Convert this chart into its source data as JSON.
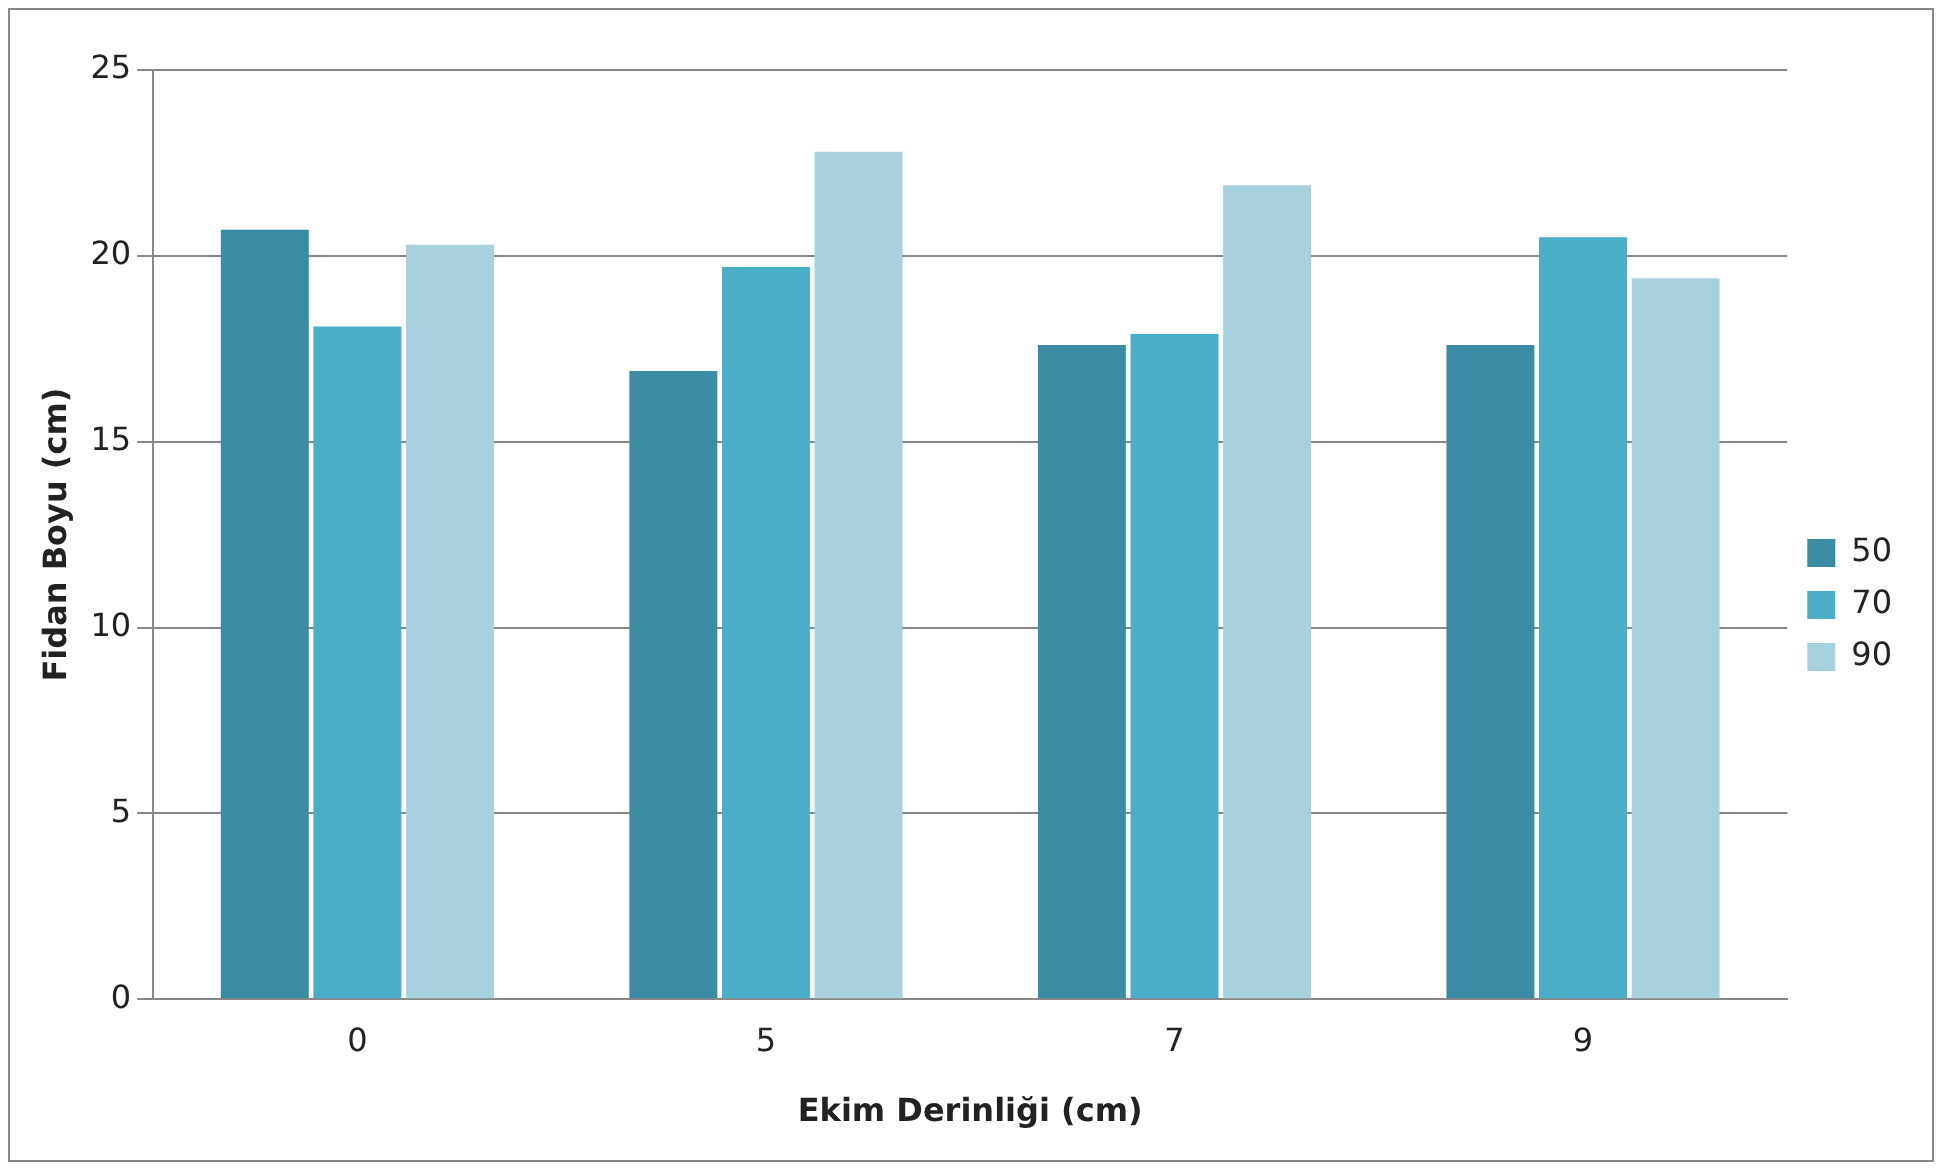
{
  "chart_data": {
    "type": "bar",
    "xlabel": "Ekim Derinliği (cm)",
    "ylabel": "Fidan Boyu (cm)",
    "categories": [
      "0",
      "5",
      "7",
      "9"
    ],
    "series": [
      {
        "name": "50",
        "color": "#3b8ca3",
        "values": [
          20.7,
          16.9,
          17.6,
          17.6
        ]
      },
      {
        "name": "70",
        "color": "#4aaec8",
        "values": [
          18.1,
          19.7,
          17.9,
          20.5
        ]
      },
      {
        "name": "90",
        "color": "#a8d1de",
        "values": [
          20.3,
          22.8,
          21.9,
          19.4
        ]
      }
    ],
    "ylim": [
      0,
      25
    ],
    "yticks": [
      0,
      5,
      10,
      15,
      20,
      25
    ],
    "grid": "y",
    "legend": "right"
  }
}
